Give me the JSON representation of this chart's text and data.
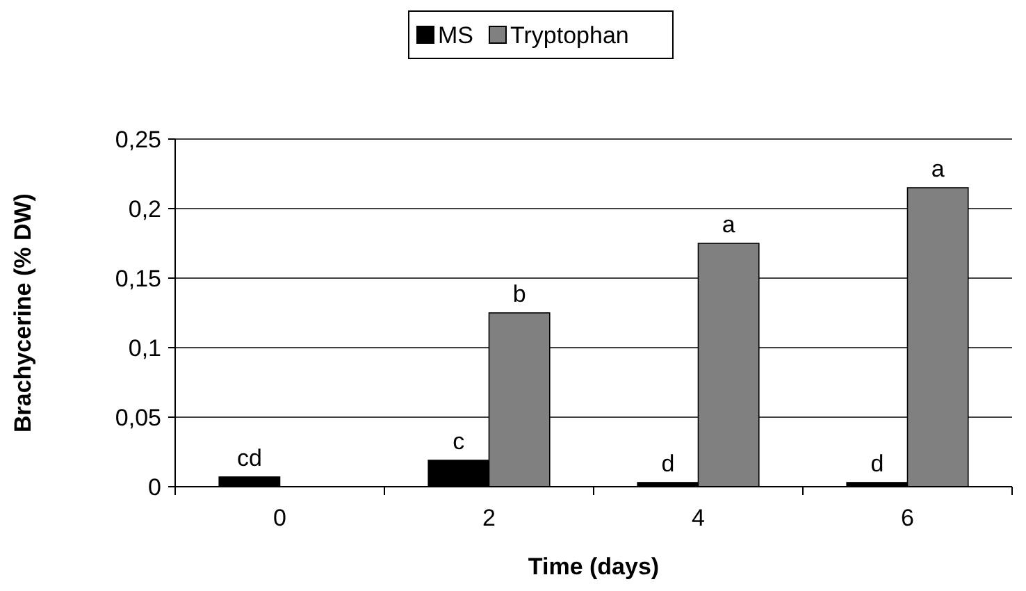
{
  "chart_data": {
    "type": "bar",
    "xlabel": "Time (days)",
    "ylabel": "Brachycerine (% DW)",
    "categories": [
      "0",
      "2",
      "4",
      "6"
    ],
    "series": [
      {
        "name": "MS",
        "color": "#000000",
        "values": [
          0.007,
          0.019,
          0.003,
          0.003
        ]
      },
      {
        "name": "Tryptophan",
        "color": "#808080",
        "values": [
          0,
          0.125,
          0.175,
          0.215
        ]
      }
    ],
    "ylim": [
      0,
      0.25
    ],
    "yticks": [
      {
        "value": 0,
        "label": "0"
      },
      {
        "value": 0.05,
        "label": "0,05"
      },
      {
        "value": 0.1,
        "label": "0,1"
      },
      {
        "value": 0.15,
        "label": "0,15"
      },
      {
        "value": 0.2,
        "label": "0,2"
      },
      {
        "value": 0.25,
        "label": "0,25"
      }
    ],
    "grid": "y",
    "legend": "top",
    "annotations": [
      {
        "text": "cd",
        "x": "0",
        "y": 0.007
      },
      {
        "text": "c",
        "x": "2",
        "y": 0.019
      },
      {
        "text": "b",
        "x": "2",
        "y": 0.125
      },
      {
        "text": "d",
        "x": "4",
        "y": 0.003
      },
      {
        "text": "a",
        "x": "4",
        "y": 0.175
      },
      {
        "text": "d",
        "x": "6",
        "y": 0.003
      },
      {
        "text": "a",
        "x": "6",
        "y": 0.215
      }
    ]
  }
}
